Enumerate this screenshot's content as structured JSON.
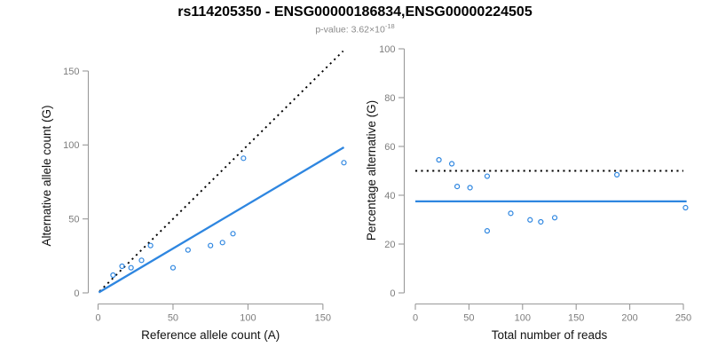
{
  "header": {
    "title": "rs114205350 - ENSG00000186834,ENSG00000224505",
    "pvalue_prefix": "p-value: 3.62×10",
    "pvalue_exponent": "-18"
  },
  "colors": {
    "accent_blue": "#2E86E0",
    "line_black": "#000000",
    "axis_gray": "#999999",
    "tick_label_gray": "#7d7d7d",
    "axis_title_black": "#111111",
    "subtitle_gray": "#8a8a8a"
  },
  "chart_data": [
    {
      "type": "scatter",
      "name": "allele-counts",
      "xlabel": "Reference allele count (A)",
      "ylabel": "Alternative allele count (G)",
      "xlim": [
        0,
        165
      ],
      "ylim": [
        0,
        165
      ],
      "xticks": [
        0,
        50,
        100,
        150
      ],
      "yticks": [
        0,
        50,
        100,
        150
      ],
      "grid": false,
      "point_color": "#2E86E0",
      "points": [
        [
          10,
          12
        ],
        [
          16,
          18
        ],
        [
          22,
          17
        ],
        [
          29,
          22
        ],
        [
          35,
          32
        ],
        [
          50,
          17
        ],
        [
          60,
          29
        ],
        [
          75,
          32
        ],
        [
          83,
          34
        ],
        [
          90,
          40
        ],
        [
          97,
          91
        ],
        [
          164,
          88
        ]
      ],
      "lines": [
        {
          "name": "expected-line",
          "slope": 1,
          "intercept": 0,
          "x_from": 1,
          "x_to": 163.5,
          "style": "dotted",
          "color": "#000000"
        },
        {
          "name": "fit-line",
          "slope": 0.6,
          "intercept": 0,
          "x_from": 0.5,
          "x_to": 164,
          "style": "solid",
          "color": "#2E86E0"
        }
      ]
    },
    {
      "type": "scatter",
      "name": "percentage-alternative",
      "xlabel": "Total number of reads",
      "ylabel": "Percentage alternative (G)",
      "xlim": [
        0,
        255
      ],
      "ylim": [
        0,
        100
      ],
      "xticks": [
        0,
        50,
        100,
        150,
        200,
        250
      ],
      "yticks": [
        0,
        20,
        40,
        60,
        80,
        100
      ],
      "grid": false,
      "point_color": "#2E86E0",
      "points": [
        [
          22,
          54.5
        ],
        [
          34,
          52.9
        ],
        [
          39,
          43.6
        ],
        [
          51,
          43.1
        ],
        [
          67,
          47.8
        ],
        [
          67,
          25.4
        ],
        [
          89,
          32.6
        ],
        [
          107,
          29.9
        ],
        [
          117,
          29.1
        ],
        [
          130,
          30.8
        ],
        [
          188,
          48.4
        ],
        [
          252,
          34.9
        ]
      ],
      "lines": [
        {
          "name": "expected-line",
          "slope": 0,
          "intercept": 50,
          "x_from": 0,
          "x_to": 250,
          "style": "dotted",
          "color": "#000000"
        },
        {
          "name": "fit-line",
          "slope": 0,
          "intercept": 37.5,
          "x_from": 0,
          "x_to": 253,
          "style": "solid",
          "color": "#2E86E0"
        }
      ]
    }
  ]
}
